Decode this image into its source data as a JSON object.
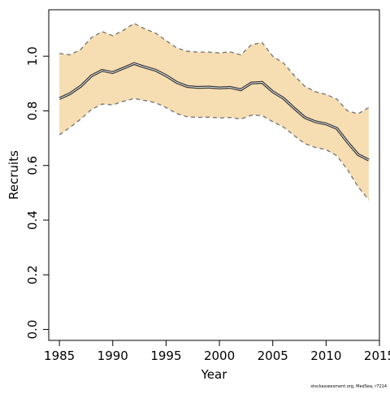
{
  "chart_data": {
    "type": "line",
    "title": "",
    "xlabel": "Year",
    "ylabel": "Recruits",
    "xlim": [
      1984,
      2015
    ],
    "ylim": [
      -0.04,
      1.17
    ],
    "x_ticks": [
      1985,
      1990,
      1995,
      2000,
      2005,
      2010,
      2015
    ],
    "x_tick_labels": [
      "1985",
      "1990",
      "1995",
      "2000",
      "2005",
      "2010",
      "2015"
    ],
    "y_ticks": [
      0.0,
      0.2,
      0.4,
      0.6,
      0.8,
      1.0
    ],
    "y_tick_labels": [
      "0.0",
      "0.2",
      "0.4",
      "0.6",
      "0.8",
      "1.0"
    ],
    "grid": false,
    "legend": "none",
    "x": [
      1985,
      1986,
      1987,
      1988,
      1989,
      1990,
      1991,
      1992,
      1993,
      1994,
      1995,
      1996,
      1997,
      1998,
      1999,
      2000,
      2001,
      2002,
      2003,
      2004,
      2005,
      2006,
      2007,
      2008,
      2009,
      2010,
      2011,
      2012,
      2013,
      2014
    ],
    "series": [
      {
        "role": "estimate",
        "values": [
          0.845,
          0.863,
          0.89,
          0.928,
          0.948,
          0.94,
          0.956,
          0.973,
          0.96,
          0.949,
          0.929,
          0.904,
          0.889,
          0.886,
          0.887,
          0.884,
          0.886,
          0.877,
          0.902,
          0.904,
          0.87,
          0.846,
          0.81,
          0.776,
          0.76,
          0.752,
          0.736,
          0.686,
          0.64,
          0.62
        ]
      },
      {
        "role": "upper",
        "values": [
          1.01,
          1.005,
          1.025,
          1.068,
          1.09,
          1.075,
          1.095,
          1.12,
          1.1,
          1.085,
          1.057,
          1.03,
          1.018,
          1.015,
          1.015,
          1.012,
          1.016,
          1.005,
          1.042,
          1.05,
          1.0,
          0.975,
          0.93,
          0.89,
          0.87,
          0.86,
          0.843,
          0.8,
          0.789,
          0.812
        ]
      },
      {
        "role": "lower",
        "values": [
          0.712,
          0.74,
          0.77,
          0.805,
          0.825,
          0.822,
          0.835,
          0.845,
          0.838,
          0.83,
          0.812,
          0.79,
          0.778,
          0.776,
          0.777,
          0.774,
          0.776,
          0.77,
          0.784,
          0.783,
          0.76,
          0.741,
          0.71,
          0.68,
          0.666,
          0.658,
          0.636,
          0.585,
          0.522,
          0.474
        ]
      }
    ],
    "colors": {
      "band": "#F6DEB2",
      "estimate_line": "#333333",
      "bound_line": "#7A7A7A"
    },
    "footnote": "stockassessment.org, MedSea, r7214"
  }
}
